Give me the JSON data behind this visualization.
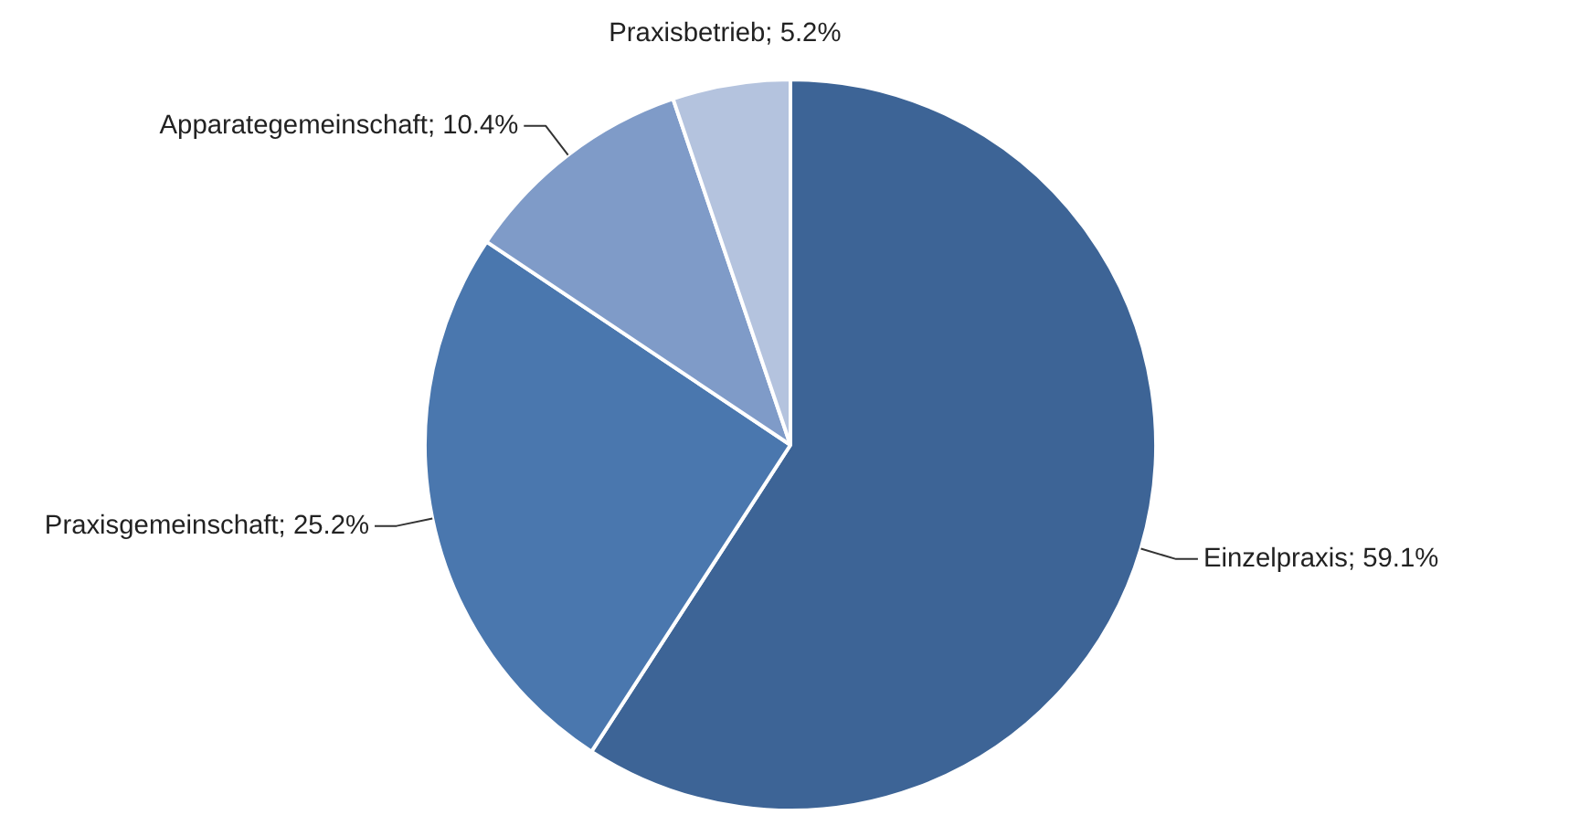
{
  "chart_data": {
    "type": "pie",
    "categories": [
      "Einzelpraxis",
      "Praxisgemeinschaft",
      "Apparategemeinschaft",
      "Praxisbetrieb"
    ],
    "values": [
      59.1,
      25.2,
      10.4,
      5.2
    ],
    "colors": [
      "#3d6496",
      "#4a77ae",
      "#7f9bc8",
      "#b4c3de"
    ],
    "value_labels": [
      "59.1%",
      "25.2%",
      "10.4%",
      "5.2%"
    ]
  }
}
